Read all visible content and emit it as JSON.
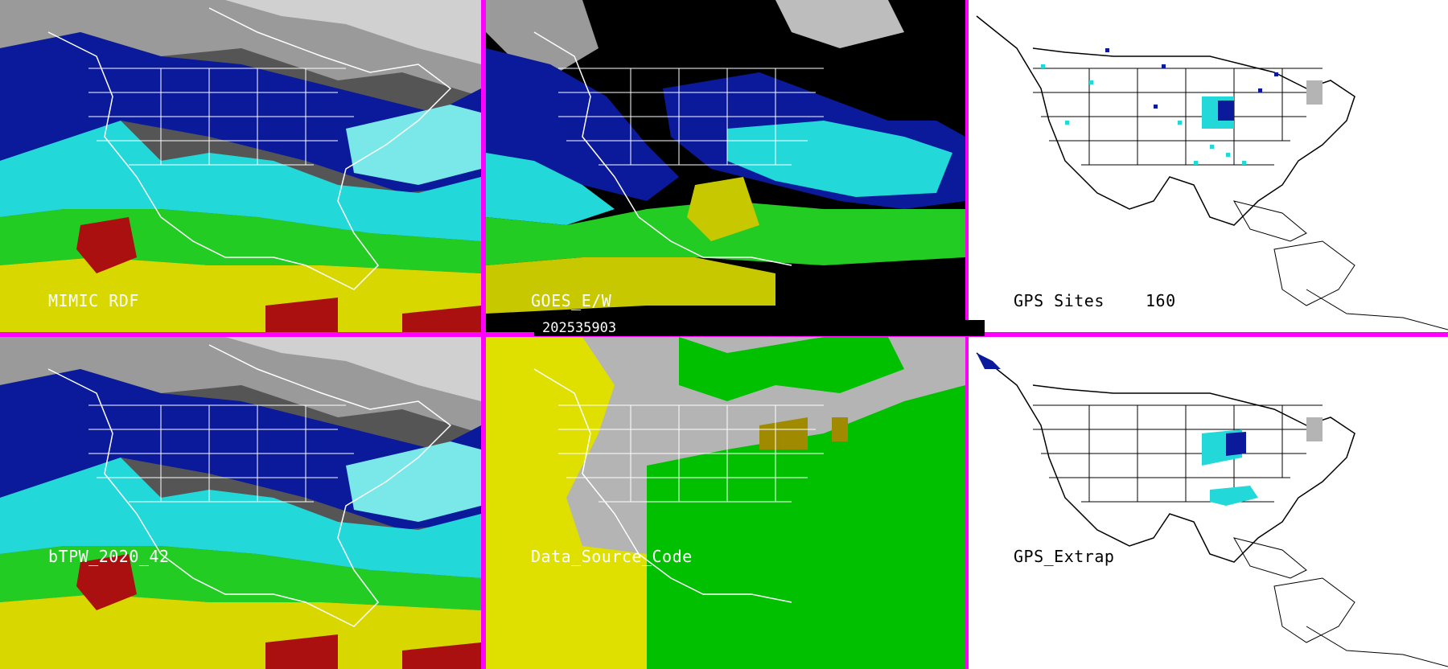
{
  "panels": [
    {
      "id": "mimic-rdf",
      "label": "MIMIC RDF"
    },
    {
      "id": "goes-ew",
      "label": "GOES_E/W"
    },
    {
      "id": "gps-sites",
      "label": "GPS Sites",
      "count": "160"
    },
    {
      "id": "btpw",
      "label": "bTPW_2020_42"
    },
    {
      "id": "data-source-code",
      "label": "Data_Source_Code"
    },
    {
      "id": "gps-extrap",
      "label": "GPS_Extrap"
    }
  ],
  "timestamp": "202535903",
  "colors": {
    "frame": "#ff00ff",
    "dry": "#0a1a9a",
    "moist": "#22e0e0",
    "wet": "#22cc22",
    "very_wet": "#e8e000",
    "extreme": "#aa0000",
    "source_green": "#00c000",
    "source_yellow": "#e0e000",
    "source_gray": "#b4b4b4"
  }
}
